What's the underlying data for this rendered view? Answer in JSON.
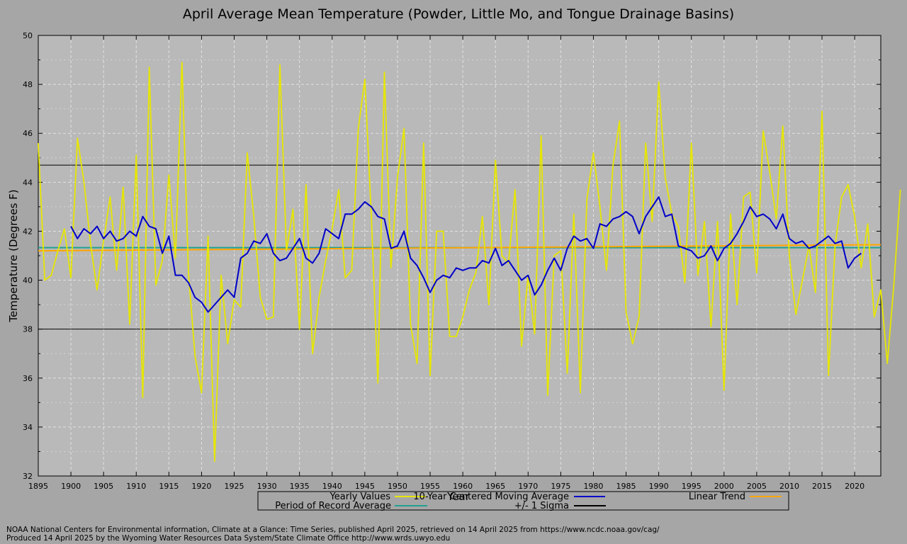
{
  "chart_data": {
    "type": "line",
    "title": "April Average Mean Temperature (Powder, Little Mo, and Tongue Drainage Basins)",
    "xlabel": "Year",
    "ylabel": "Temperature (Degrees F)",
    "xlim": [
      1895,
      2024
    ],
    "ylim": [
      32,
      50
    ],
    "xticks": [
      1895,
      1900,
      1905,
      1910,
      1915,
      1920,
      1925,
      1930,
      1935,
      1940,
      1945,
      1950,
      1955,
      1960,
      1965,
      1970,
      1975,
      1980,
      1985,
      1990,
      1995,
      2000,
      2005,
      2010,
      2015,
      2020
    ],
    "yticks": [
      32,
      34,
      36,
      38,
      40,
      42,
      44,
      46,
      48,
      50
    ],
    "grid": true,
    "legend_position": "bottom",
    "legend": [
      {
        "label": "Yearly Values",
        "color": "#e6e600"
      },
      {
        "label": "10-Year Centered Moving Average",
        "color": "#0000c8"
      },
      {
        "label": "Linear Trend",
        "color": "#ffa500"
      },
      {
        "label": "Period of Record Average",
        "color": "#20a090"
      },
      {
        "label": "+/- 1 Sigma",
        "color": "#000000"
      }
    ],
    "series": [
      {
        "name": "Yearly Values",
        "color": "#e6e600",
        "x_start": 1895,
        "values": [
          45.6,
          40.0,
          40.2,
          41.2,
          42.1,
          40.1,
          45.8,
          44.0,
          41.5,
          39.6,
          41.6,
          43.4,
          40.4,
          43.8,
          38.2,
          45.1,
          35.2,
          48.7,
          39.8,
          40.8,
          44.3,
          40.9,
          48.9,
          40.3,
          36.9,
          35.4,
          41.8,
          32.6,
          40.2,
          37.4,
          39.2,
          38.9,
          45.2,
          42.6,
          39.3,
          38.4,
          38.5,
          48.8,
          41.2,
          42.9,
          38.0,
          43.9,
          37.0,
          39.3,
          40.8,
          42.1,
          43.7,
          40.1,
          40.4,
          46.2,
          48.2,
          42.6,
          35.8,
          48.5,
          40.5,
          44.2,
          46.2,
          38.2,
          36.6,
          45.6,
          36.1,
          42.0,
          42.0,
          37.7,
          37.7,
          38.5,
          39.6,
          40.3,
          42.6,
          39.0,
          44.9,
          41.0,
          40.7,
          43.7,
          37.3,
          40.2,
          37.8,
          45.9,
          35.3,
          41.0,
          41.2,
          36.2,
          42.7,
          35.4,
          43.3,
          45.2,
          43.0,
          40.4,
          44.7,
          46.5,
          38.7,
          37.4,
          38.5,
          45.6,
          42.4,
          48.1,
          44.2,
          42.7,
          42.2,
          39.9,
          45.6,
          40.2,
          42.4,
          38.1,
          42.4,
          35.5,
          42.7,
          39.0,
          43.4,
          43.6,
          40.3,
          46.1,
          44.4,
          42.5,
          46.3,
          41.0,
          38.6,
          40.0,
          41.4,
          39.5,
          46.9,
          36.1,
          41.4,
          43.4,
          43.9,
          42.6,
          40.5,
          42.3,
          38.5,
          39.6,
          36.6,
          39.8,
          43.7
        ]
      },
      {
        "name": "10-Year Centered Moving Average",
        "color": "#0000c8",
        "x_start": 1900,
        "values": [
          42.2,
          41.7,
          42.1,
          41.9,
          42.2,
          41.7,
          42.0,
          41.6,
          41.7,
          42.0,
          41.8,
          42.6,
          42.2,
          42.1,
          41.1,
          41.8,
          40.2,
          40.2,
          39.9,
          39.3,
          39.1,
          38.7,
          39.0,
          39.3,
          39.6,
          39.3,
          40.9,
          41.1,
          41.6,
          41.5,
          41.9,
          41.1,
          40.8,
          40.9,
          41.3,
          41.7,
          40.9,
          40.7,
          41.1,
          42.1,
          41.9,
          41.7,
          42.7,
          42.7,
          42.9,
          43.2,
          43.0,
          42.6,
          42.5,
          41.3,
          41.4,
          42.0,
          40.9,
          40.6,
          40.1,
          39.5,
          40.0,
          40.2,
          40.1,
          40.5,
          40.4,
          40.5,
          40.5,
          40.8,
          40.7,
          41.3,
          40.6,
          40.8,
          40.4,
          40.0,
          40.2,
          39.4,
          39.8,
          40.4,
          40.9,
          40.4,
          41.3,
          41.8,
          41.6,
          41.7,
          41.3,
          42.3,
          42.2,
          42.5,
          42.6,
          42.8,
          42.6,
          41.9,
          42.6,
          43.0,
          43.4,
          42.6,
          42.7,
          41.4,
          41.3,
          41.2,
          40.9,
          41.0,
          41.4,
          40.8,
          41.3,
          41.5,
          41.9,
          42.4,
          43.0,
          42.6,
          42.7,
          42.5,
          42.1,
          42.7,
          41.7,
          41.5,
          41.6,
          41.3,
          41.4,
          41.6,
          41.8,
          41.5,
          41.6,
          40.5,
          40.9,
          41.1
        ]
      }
    ],
    "linear_trend": {
      "x": [
        1895,
        2024
      ],
      "y": [
        41.2,
        41.45
      ],
      "color": "#ffa500"
    },
    "period_of_record_average": {
      "value": 41.33,
      "color": "#20a090"
    },
    "sigma_lines": {
      "upper": 44.7,
      "lower": 38.0,
      "color": "#000000"
    }
  },
  "footer": {
    "line1": "NOAA National Centers for Environmental information, Climate at a Glance: Time Series, published April 2025, retrieved on 14 April 2025 from https://www.ncdc.noaa.gov/cag/",
    "line2": "Produced 14 April 2025 by the Wyoming Water Resources Data System/State Climate Office http://www.wrds.uwyo.edu"
  }
}
